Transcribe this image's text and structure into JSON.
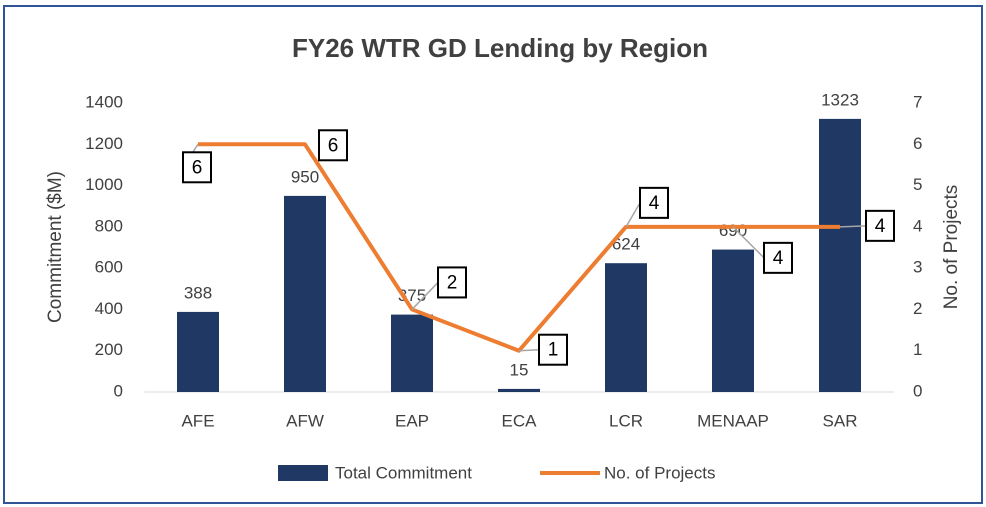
{
  "chart_data": {
    "type": "combo",
    "title": "FY26 WTR GD Lending by Region",
    "categories": [
      "AFE",
      "AFW",
      "EAP",
      "ECA",
      "LCR",
      "MENAAP",
      "SAR"
    ],
    "series": [
      {
        "name": "Total Commitment",
        "type": "bar",
        "color": "#1f3864",
        "values": [
          388,
          950,
          375,
          15,
          624,
          690,
          1323
        ]
      },
      {
        "name": "No. of Projects",
        "type": "line",
        "axis": "y2",
        "color": "#ed7d31",
        "values": [
          6,
          6,
          2,
          1,
          4,
          4,
          4
        ]
      }
    ],
    "y_label": "Commitment ($M)",
    "y2_label": "No. of Projects",
    "ylim": [
      0,
      1400
    ],
    "yticks": [
      0,
      200,
      400,
      600,
      800,
      1000,
      1200,
      1400
    ],
    "y2lim": [
      0,
      7
    ],
    "y2ticks": [
      0,
      1,
      2,
      3,
      4,
      5,
      6,
      7
    ],
    "grid": false,
    "legend": "bottom"
  }
}
